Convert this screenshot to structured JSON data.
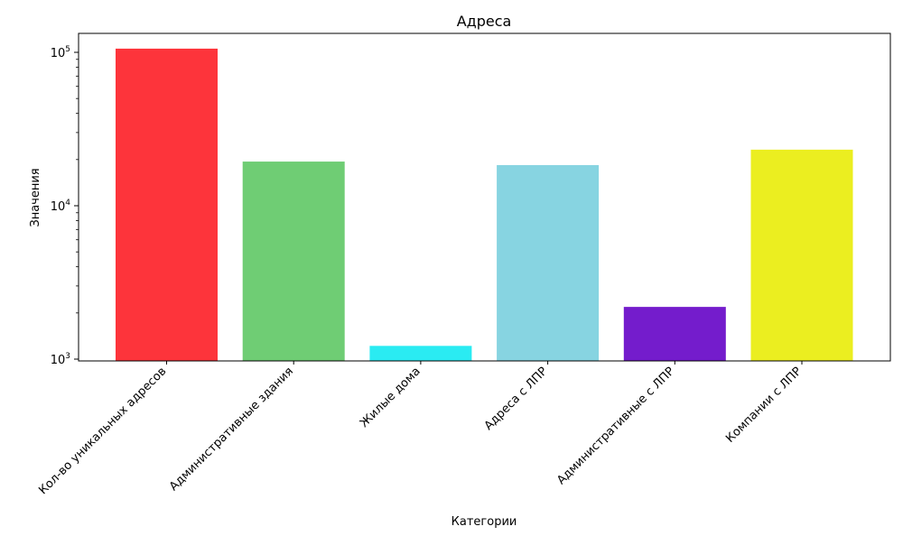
{
  "chart_data": {
    "type": "bar",
    "title": "Адреса",
    "xlabel": "Категории",
    "ylabel": "Значения",
    "yscale": "log",
    "ylim": [
      950,
      130000
    ],
    "yticks": [
      {
        "value": 1000,
        "base": "10",
        "exp": "3"
      },
      {
        "value": 10000,
        "base": "10",
        "exp": "4"
      },
      {
        "value": 100000,
        "base": "10",
        "exp": "5"
      }
    ],
    "categories": [
      "Кол-во уникальных адресов",
      "Административные здания",
      "Жилые дома",
      "Адреса с ЛПР",
      "Административные с ЛПР",
      "Компании с ЛПР"
    ],
    "values": [
      105700,
      19400,
      1220,
      18400,
      2190,
      23200
    ],
    "colors": [
      "#fd343b",
      "#6fcd74",
      "#2aebf2",
      "#87d4e1",
      "#741ccc",
      "#ebee20"
    ],
    "grid": false,
    "legend": null
  }
}
